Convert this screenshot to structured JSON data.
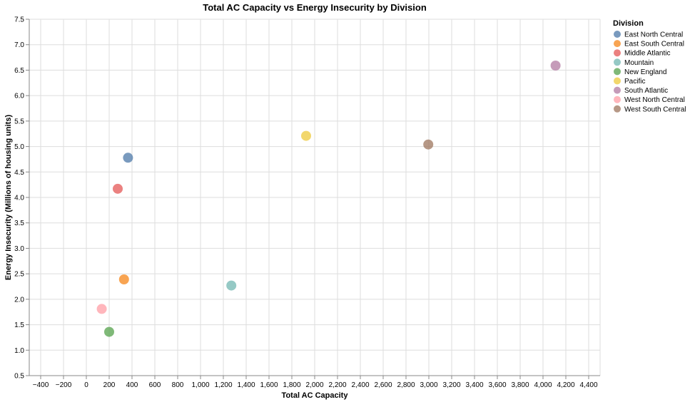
{
  "chart_data": {
    "type": "scatter",
    "title": "Total AC Capacity vs Energy Insecurity by Division",
    "xlabel": "Total AC Capacity",
    "ylabel": "Energy Insecurity (Millions of housing units)",
    "xlim": [
      -500,
      4500
    ],
    "ylim": [
      0.5,
      7.5
    ],
    "x_ticks": [
      -400,
      -200,
      0,
      200,
      400,
      600,
      800,
      1000,
      1200,
      1400,
      1600,
      1800,
      2000,
      2200,
      2400,
      2600,
      2800,
      3000,
      3200,
      3400,
      3600,
      3800,
      4000,
      4200,
      4400
    ],
    "x_tick_labels": [
      "−400",
      "−200",
      "0",
      "200",
      "400",
      "600",
      "800",
      "1,000",
      "1,200",
      "1,400",
      "1,600",
      "1,800",
      "2,000",
      "2,200",
      "2,400",
      "2,600",
      "2,800",
      "3,000",
      "3,200",
      "3,400",
      "3,600",
      "3,800",
      "4,000",
      "4,200",
      "4,400"
    ],
    "y_ticks": [
      0.5,
      1.0,
      1.5,
      2.0,
      2.5,
      3.0,
      3.5,
      4.0,
      4.5,
      5.0,
      5.5,
      6.0,
      6.5,
      7.0,
      7.5
    ],
    "y_tick_labels": [
      "0.5",
      "1.0",
      "1.5",
      "2.0",
      "2.5",
      "3.0",
      "3.5",
      "4.0",
      "4.5",
      "5.0",
      "5.5",
      "6.0",
      "6.5",
      "7.0",
      "7.5"
    ],
    "grid": true,
    "legend_title": "Division",
    "legend_position": "right",
    "series": [
      {
        "name": "East North Central",
        "color": "#4c78a8",
        "x": 365,
        "y": 4.78
      },
      {
        "name": "East South Central",
        "color": "#f58518",
        "x": 330,
        "y": 2.39
      },
      {
        "name": "Middle Atlantic",
        "color": "#e45756",
        "x": 275,
        "y": 4.17
      },
      {
        "name": "Mountain",
        "color": "#72b7b2",
        "x": 1270,
        "y": 2.27
      },
      {
        "name": "New England",
        "color": "#54a24b",
        "x": 200,
        "y": 1.36
      },
      {
        "name": "Pacific",
        "color": "#eeca3b",
        "x": 1925,
        "y": 5.21
      },
      {
        "name": "South Atlantic",
        "color": "#b279a2",
        "x": 4110,
        "y": 6.59
      },
      {
        "name": "West North Central",
        "color": "#ff9da6",
        "x": 135,
        "y": 1.81
      },
      {
        "name": "West South Central",
        "color": "#9d755d",
        "x": 2995,
        "y": 5.04
      }
    ]
  }
}
